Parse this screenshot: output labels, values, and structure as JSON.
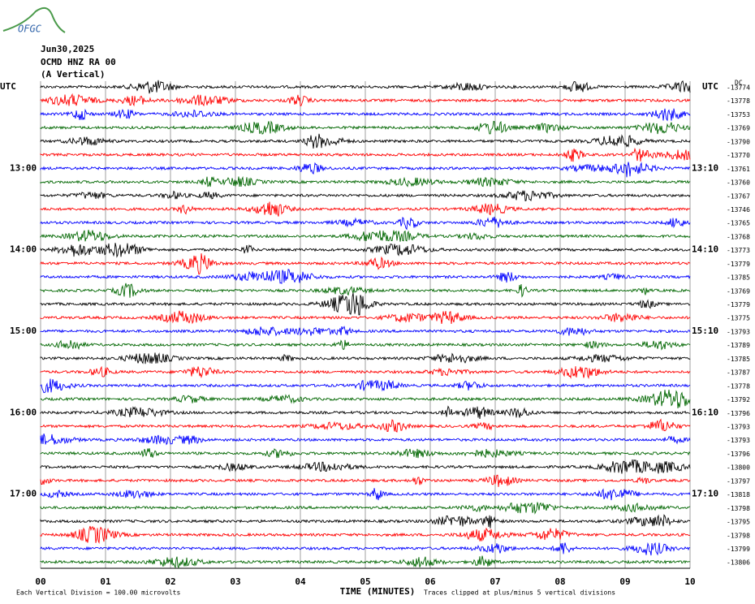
{
  "logo": "OFGC",
  "header": {
    "date": "Jun30,2025",
    "station": "OCMD HNZ RA 00",
    "component": "(A Vertical)"
  },
  "left_axis": {
    "zone": "UTC",
    "labels": [
      "13:00",
      "14:00",
      "15:00",
      "16:00",
      "17:00"
    ]
  },
  "right_axis": {
    "zone": "UTC",
    "labels": [
      "13:10",
      "14:10",
      "15:10",
      "16:10",
      "17:10"
    ],
    "dc": "DC",
    "offsets": [
      -13774,
      -13778,
      -13753,
      -13769,
      -13790,
      -13770,
      -13761,
      -13760,
      -13767,
      -13746,
      -13765,
      -13768,
      -13773,
      -13779,
      -13785,
      -13769,
      -13779,
      -13775,
      -13793,
      -13789,
      -13785,
      -13787,
      -13778,
      -13792,
      -13796,
      -13793,
      -13793,
      -13796,
      -13800,
      -13797,
      -13818,
      -13798,
      -13795,
      -13798,
      -13799,
      -13806
    ]
  },
  "x_axis": {
    "title": "TIME (MINUTES)",
    "ticks": [
      "00",
      "01",
      "02",
      "03",
      "04",
      "05",
      "06",
      "07",
      "08",
      "09",
      "10"
    ]
  },
  "footer": {
    "scale": "Each Vertical Division =  100.00 microvolts",
    "clip": "Traces clipped at plus/minus 5 vertical divisions"
  }
}
